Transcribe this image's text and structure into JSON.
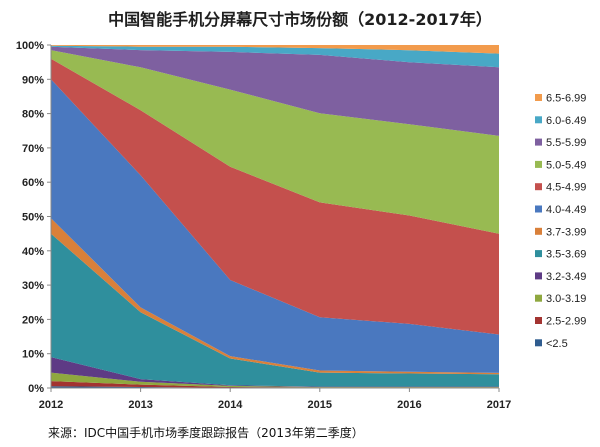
{
  "chart_data": {
    "type": "area",
    "stacked": true,
    "normalized": true,
    "title": "中国智能手机分屏幕尺寸市场份额（2012-2017年）",
    "source": "来源：IDC中国手机市场季度跟踪报告（2013年第二季度）",
    "x": [
      "2012",
      "2013",
      "2014",
      "2015",
      "2016",
      "2017"
    ],
    "ylim": [
      0,
      100
    ],
    "yticks": [
      "0%",
      "10%",
      "20%",
      "30%",
      "40%",
      "50%",
      "60%",
      "70%",
      "80%",
      "90%",
      "100%"
    ],
    "legend_position": "right",
    "grid": false,
    "series": [
      {
        "name": "<2.5",
        "color": "#2f5c8f",
        "values": [
          0.5,
          0.3,
          0.1,
          0.1,
          0.1,
          0.1
        ]
      },
      {
        "name": "2.5-2.99",
        "color": "#a33431",
        "values": [
          1.5,
          0.7,
          0.2,
          0.1,
          0.1,
          0.1
        ]
      },
      {
        "name": "3.0-3.19",
        "color": "#8fa83f",
        "values": [
          2.5,
          0.8,
          0.3,
          0.1,
          0.1,
          0.1
        ]
      },
      {
        "name": "3.2-3.49",
        "color": "#5e3b85",
        "values": [
          4.5,
          0.8,
          0.2,
          0.1,
          0.1,
          0.1
        ]
      },
      {
        "name": "3.5-3.69",
        "color": "#2f8f9d",
        "values": [
          36,
          19.5,
          7.8,
          4.1,
          3.8,
          3.6
        ]
      },
      {
        "name": "3.7-3.99",
        "color": "#d9803a",
        "values": [
          4.5,
          1.4,
          0.7,
          0.6,
          0.5,
          0.4
        ]
      },
      {
        "name": "4.0-4.49",
        "color": "#4a78bf",
        "values": [
          40.5,
          38.5,
          22.2,
          15.5,
          13.9,
          11.2
        ]
      },
      {
        "name": "4.5-4.99",
        "color": "#c4504d",
        "values": [
          6,
          19,
          33,
          33.5,
          31.5,
          29.4
        ]
      },
      {
        "name": "5.0-5.49",
        "color": "#98ba52",
        "values": [
          2.5,
          12.5,
          22.5,
          26,
          26.5,
          28.5
        ]
      },
      {
        "name": "5.5-5.99",
        "color": "#7e60a0",
        "values": [
          1,
          5,
          11,
          17,
          18,
          20
        ]
      },
      {
        "name": "6.0-6.49",
        "color": "#48a8c6",
        "values": [
          0.3,
          1.0,
          1.5,
          2.0,
          3.5,
          4.0
        ]
      },
      {
        "name": "6.5-6.99",
        "color": "#f29b4c",
        "values": [
          0.2,
          0.5,
          0.5,
          0.9,
          1.5,
          2.5
        ]
      }
    ]
  }
}
